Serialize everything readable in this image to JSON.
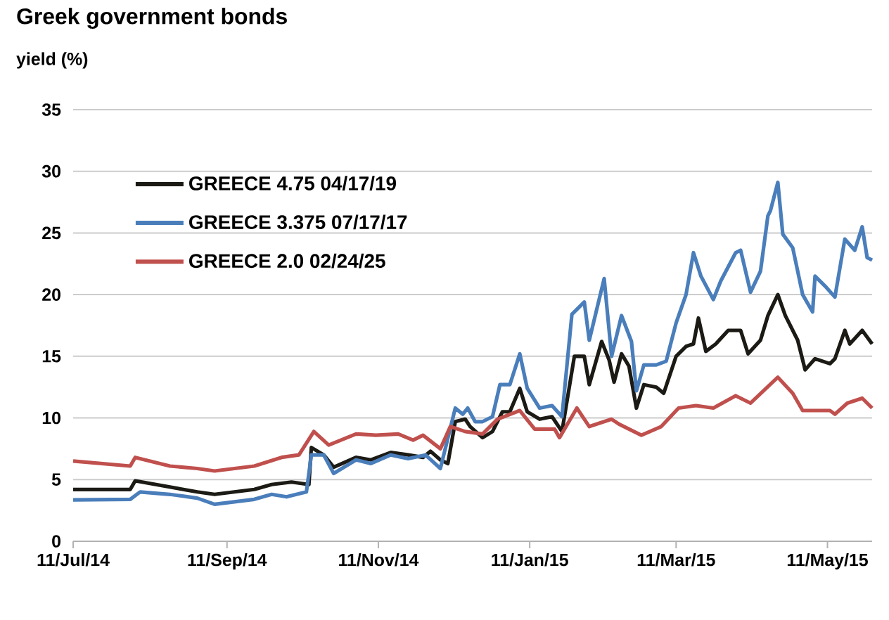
{
  "chart_data": {
    "type": "line",
    "title": "Greek government bonds",
    "ylabel": "yield (%)",
    "xlim": [
      "2014-07-11",
      "2015-05-29"
    ],
    "ylim": [
      0,
      35
    ],
    "xticks": [
      {
        "value": "2014-07-11",
        "label": "11/Jul/14"
      },
      {
        "value": "2014-09-11",
        "label": "11/Sep/14"
      },
      {
        "value": "2014-11-11",
        "label": "11/Nov/14"
      },
      {
        "value": "2015-01-11",
        "label": "11/Jan/15"
      },
      {
        "value": "2015-03-11",
        "label": "11/Mar/15"
      },
      {
        "value": "2015-05-11",
        "label": "11/May/15"
      }
    ],
    "yticks": [
      0,
      5,
      10,
      15,
      20,
      25,
      30,
      35
    ],
    "grid": "y",
    "legend": "top left",
    "marker": "none",
    "line_style": "solid",
    "series": [
      {
        "name": "GREECE 4.75 04/17/19",
        "color": "#1c1a14",
        "x": [
          "2014-07-11",
          "2014-08-03",
          "2014-08-05",
          "2014-08-30",
          "2014-09-06",
          "2014-09-22",
          "2014-09-29",
          "2014-10-07",
          "2014-10-14",
          "2014-10-15",
          "2014-10-20",
          "2014-10-24",
          "2014-11-02",
          "2014-11-08",
          "2014-11-16",
          "2014-11-23",
          "2014-11-29",
          "2014-12-02",
          "2014-12-06",
          "2014-12-09",
          "2014-12-12",
          "2014-12-16",
          "2014-12-18",
          "2014-12-23",
          "2014-12-27",
          "2014-12-31",
          "2015-01-03",
          "2015-01-07",
          "2015-01-10",
          "2015-01-15",
          "2015-01-20",
          "2015-01-24",
          "2015-01-29",
          "2015-02-02",
          "2015-02-04",
          "2015-02-09",
          "2015-02-12",
          "2015-02-14",
          "2015-02-17",
          "2015-02-20",
          "2015-02-23",
          "2015-02-26",
          "2015-03-03",
          "2015-03-06",
          "2015-03-11",
          "2015-03-15",
          "2015-03-18",
          "2015-03-20",
          "2015-03-23",
          "2015-03-27",
          "2015-04-01",
          "2015-04-06",
          "2015-04-09",
          "2015-04-14",
          "2015-04-17",
          "2015-04-21",
          "2015-04-24",
          "2015-04-29",
          "2015-05-02",
          "2015-05-06",
          "2015-05-12",
          "2015-05-14",
          "2015-05-18",
          "2015-05-20",
          "2015-05-25",
          "2015-05-29"
        ],
        "values": [
          4.2,
          4.2,
          4.9,
          4.0,
          3.8,
          4.2,
          4.6,
          4.8,
          4.6,
          7.6,
          7.0,
          6.0,
          6.8,
          6.6,
          7.2,
          7.0,
          6.8,
          7.3,
          6.6,
          6.3,
          9.7,
          9.9,
          9.3,
          8.4,
          8.9,
          10.5,
          10.5,
          12.4,
          10.5,
          9.9,
          10.1,
          8.9,
          15.0,
          15.0,
          12.7,
          16.2,
          14.7,
          12.9,
          15.2,
          14.2,
          10.8,
          12.7,
          12.5,
          12.0,
          15.0,
          15.8,
          16.0,
          18.1,
          15.4,
          16.0,
          17.1,
          17.1,
          15.2,
          16.3,
          18.3,
          20.0,
          18.3,
          16.3,
          13.9,
          14.8,
          14.4,
          14.8,
          17.1,
          16.0,
          17.1,
          16.0
        ]
      },
      {
        "name": "GREECE 3.375 07/17/17",
        "color": "#4a7ebb",
        "x": [
          "2014-07-11",
          "2014-08-03",
          "2014-08-07",
          "2014-08-19",
          "2014-08-30",
          "2014-09-06",
          "2014-09-22",
          "2014-09-29",
          "2014-10-05",
          "2014-10-13",
          "2014-10-15",
          "2014-10-20",
          "2014-10-24",
          "2014-11-02",
          "2014-11-08",
          "2014-11-16",
          "2014-11-23",
          "2014-11-30",
          "2014-12-06",
          "2014-12-12",
          "2014-12-15",
          "2014-12-17",
          "2014-12-20",
          "2014-12-23",
          "2014-12-27",
          "2014-12-30",
          "2015-01-03",
          "2015-01-07",
          "2015-01-10",
          "2015-01-15",
          "2015-01-20",
          "2015-01-24",
          "2015-01-28",
          "2015-02-02",
          "2015-02-04",
          "2015-02-10",
          "2015-02-13",
          "2015-02-17",
          "2015-02-21",
          "2015-02-23",
          "2015-02-26",
          "2015-03-03",
          "2015-03-07",
          "2015-03-11",
          "2015-03-15",
          "2015-03-18",
          "2015-03-21",
          "2015-03-26",
          "2015-03-29",
          "2015-04-04",
          "2015-04-06",
          "2015-04-10",
          "2015-04-14",
          "2015-04-17",
          "2015-04-18",
          "2015-04-21",
          "2015-04-23",
          "2015-04-27",
          "2015-05-01",
          "2015-05-05",
          "2015-05-06",
          "2015-05-10",
          "2015-05-14",
          "2015-05-18",
          "2015-05-22",
          "2015-05-25",
          "2015-05-27",
          "2015-05-29"
        ],
        "values": [
          3.35,
          3.4,
          4.0,
          3.8,
          3.5,
          3.0,
          3.4,
          3.8,
          3.6,
          4.0,
          7.0,
          7.0,
          5.5,
          6.6,
          6.3,
          7.0,
          6.7,
          7.0,
          5.9,
          10.8,
          10.3,
          10.8,
          9.7,
          9.7,
          10.1,
          12.7,
          12.7,
          15.2,
          12.4,
          10.8,
          11.0,
          10.1,
          18.4,
          19.4,
          16.3,
          21.3,
          15.0,
          18.3,
          16.2,
          12.2,
          14.3,
          14.3,
          14.6,
          17.7,
          20.0,
          23.4,
          21.5,
          19.6,
          21.1,
          23.4,
          23.6,
          20.2,
          21.9,
          26.4,
          26.8,
          29.1,
          24.9,
          23.8,
          20.0,
          18.6,
          21.5,
          20.7,
          19.8,
          24.5,
          23.6,
          25.5,
          23.0,
          22.8
        ]
      },
      {
        "name": "GREECE 2.0 02/24/25",
        "color": "#c0504d",
        "x": [
          "2014-07-11",
          "2014-08-03",
          "2014-08-05",
          "2014-08-19",
          "2014-08-30",
          "2014-09-06",
          "2014-09-22",
          "2014-10-03",
          "2014-10-10",
          "2014-10-16",
          "2014-10-22",
          "2014-11-02",
          "2014-11-10",
          "2014-11-19",
          "2014-11-25",
          "2014-11-29",
          "2014-12-06",
          "2014-12-10",
          "2014-12-16",
          "2014-12-23",
          "2014-12-29",
          "2015-01-07",
          "2015-01-13",
          "2015-01-21",
          "2015-01-23",
          "2015-01-30",
          "2015-02-04",
          "2015-02-13",
          "2015-02-16",
          "2015-02-25",
          "2015-03-05",
          "2015-03-12",
          "2015-03-19",
          "2015-03-26",
          "2015-04-04",
          "2015-04-10",
          "2015-04-21",
          "2015-04-27",
          "2015-05-01",
          "2015-05-12",
          "2015-05-14",
          "2015-05-19",
          "2015-05-25",
          "2015-05-29"
        ],
        "values": [
          6.5,
          6.1,
          6.8,
          6.1,
          5.9,
          5.7,
          6.1,
          6.8,
          7.0,
          8.9,
          7.8,
          8.7,
          8.6,
          8.7,
          8.2,
          8.6,
          7.5,
          9.3,
          8.9,
          8.7,
          9.9,
          10.6,
          9.1,
          9.1,
          8.4,
          10.8,
          9.3,
          9.9,
          9.5,
          8.6,
          9.3,
          10.8,
          11.0,
          10.8,
          11.8,
          11.2,
          13.3,
          12.0,
          10.6,
          10.6,
          10.3,
          11.2,
          11.6,
          10.8
        ]
      }
    ]
  }
}
